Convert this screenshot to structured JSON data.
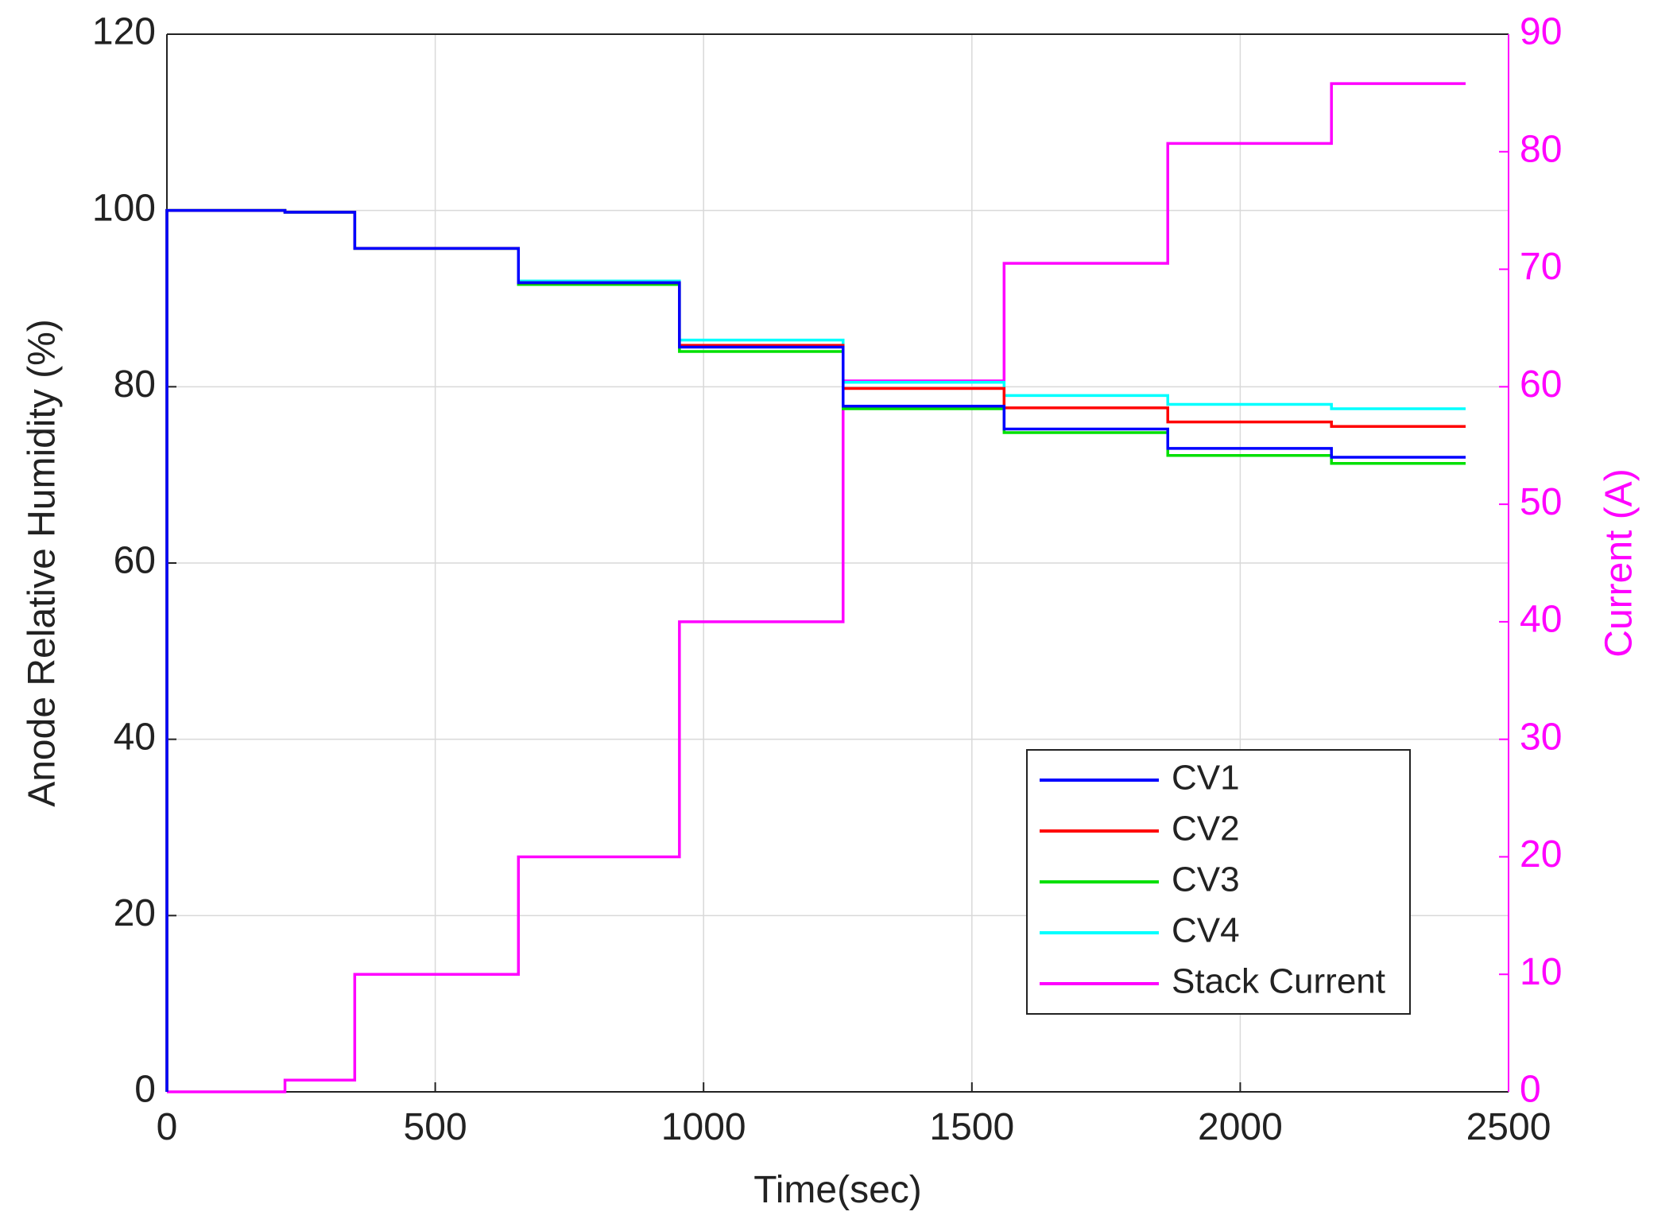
{
  "chart_data": {
    "type": "line",
    "x_label": "Time(sec)",
    "y_label": "Anode Relative Humidity (%)",
    "y2_label": "Current (A)",
    "y2_color": "#ff00ff",
    "x": [
      0,
      0,
      220,
      220,
      350,
      350,
      655,
      655,
      955,
      955,
      1260,
      1260,
      1560,
      1560,
      1865,
      1865,
      2170,
      2170,
      2420
    ],
    "series": [
      {
        "name": "CV1",
        "color": "#0000ff",
        "values": [
          0,
          100,
          100,
          99.8,
          99.8,
          95.7,
          95.7,
          91.8,
          91.8,
          84.5,
          84.5,
          77.8,
          77.8,
          75.2,
          75.2,
          73,
          73,
          72,
          72
        ]
      },
      {
        "name": "CV2",
        "color": "#ff0000",
        "values": [
          0,
          100,
          100,
          99.8,
          99.8,
          95.7,
          95.7,
          91.8,
          91.8,
          84.7,
          84.7,
          79.8,
          79.8,
          77.6,
          77.6,
          76,
          76,
          75.5,
          75.5
        ]
      },
      {
        "name": "CV3",
        "color": "#00e000",
        "values": [
          0,
          100,
          100,
          99.8,
          99.8,
          95.7,
          95.7,
          91.6,
          91.6,
          84,
          84,
          77.5,
          77.5,
          74.8,
          74.8,
          72.2,
          72.2,
          71.3,
          71.3
        ]
      },
      {
        "name": "CV4",
        "color": "#00ffff",
        "values": [
          0,
          100,
          100,
          99.8,
          99.8,
          95.7,
          95.7,
          92,
          92,
          85.3,
          85.3,
          80.5,
          80.5,
          79,
          79,
          78,
          78,
          77.5,
          77.5
        ]
      },
      {
        "name": "Stack Current",
        "color": "#ff00ff",
        "axis": "y2",
        "values": [
          0,
          0,
          0,
          1,
          1,
          10,
          10,
          20,
          20,
          40,
          40,
          60.5,
          60.5,
          70.5,
          70.5,
          80.7,
          80.7,
          85.8,
          85.8
        ]
      }
    ],
    "xlim": [
      0,
      2500
    ],
    "xticks": [
      0,
      500,
      1000,
      1500,
      2000,
      2500
    ],
    "ylim": [
      0,
      120
    ],
    "yticks": [
      0,
      20,
      40,
      60,
      80,
      100,
      120
    ],
    "y2lim": [
      0,
      90
    ],
    "y2ticks": [
      0,
      10,
      20,
      30,
      40,
      50,
      60,
      70,
      80,
      90
    ],
    "grid": true,
    "legend_location": "lower right"
  }
}
